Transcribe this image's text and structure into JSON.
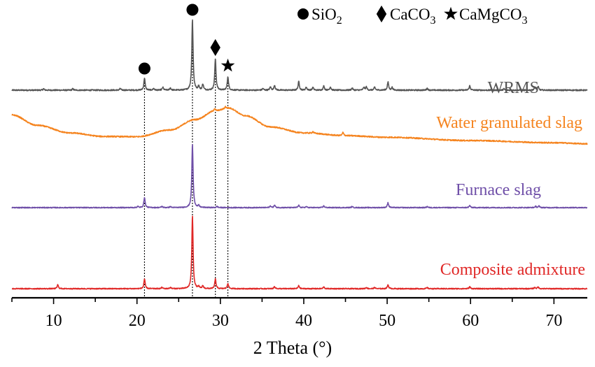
{
  "chart_data": {
    "type": "line",
    "xlabel": "2 Theta (°)",
    "ylabel": "",
    "xlim": [
      5,
      74
    ],
    "x_ticks": [
      10,
      20,
      30,
      40,
      50,
      60,
      70
    ],
    "y_ticks_shown": false,
    "legend": {
      "placement": "top-right",
      "items": [
        {
          "symbol": "circle",
          "label": "SiO",
          "sub": "2"
        },
        {
          "symbol": "diamond",
          "label": "CaCO",
          "sub": "3"
        },
        {
          "symbol": "star",
          "label": "CaMgCO",
          "sub": "3"
        }
      ]
    },
    "reference_lines": [
      {
        "x": 20.9,
        "phase": "SiO2",
        "marker": "circle"
      },
      {
        "x": 26.65,
        "phase": "SiO2",
        "marker": "circle"
      },
      {
        "x": 29.4,
        "phase": "CaCO3",
        "marker": "diamond"
      },
      {
        "x": 30.9,
        "phase": "CaMgCO3",
        "marker": "star"
      }
    ],
    "series": [
      {
        "name": "WRMS",
        "color": "#555555",
        "baseline": 0,
        "background": [
          [
            5,
            0
          ],
          [
            74,
            0
          ]
        ],
        "peaks": [
          [
            8.8,
            0.5
          ],
          [
            12.3,
            0.5
          ],
          [
            18.0,
            0.6
          ],
          [
            20.9,
            4.5
          ],
          [
            22.0,
            0.6
          ],
          [
            23.1,
            1.0
          ],
          [
            24.0,
            0.8
          ],
          [
            26.65,
            26
          ],
          [
            27.4,
            1.5
          ],
          [
            27.9,
            2.2
          ],
          [
            29.4,
            11.5
          ],
          [
            30.9,
            5.0
          ],
          [
            35.1,
            0.6
          ],
          [
            36.0,
            1.2
          ],
          [
            36.5,
            1.8
          ],
          [
            39.4,
            3.2
          ],
          [
            40.3,
            1.1
          ],
          [
            41.1,
            1.0
          ],
          [
            42.4,
            1.5
          ],
          [
            43.2,
            1.2
          ],
          [
            45.8,
            0.8
          ],
          [
            47.2,
            1.0
          ],
          [
            47.5,
            1.2
          ],
          [
            48.5,
            1.1
          ],
          [
            50.1,
            3.0
          ],
          [
            50.6,
            1.0
          ],
          [
            54.8,
            0.7
          ],
          [
            59.9,
            1.6
          ],
          [
            64.0,
            0.5
          ],
          [
            67.7,
            1.0
          ],
          [
            68.1,
            1.3
          ]
        ]
      },
      {
        "name": "Water granulated slag",
        "color": "#f5841f",
        "baseline": 0,
        "background": [
          [
            5,
            4.0
          ],
          [
            8,
            0.2
          ],
          [
            12,
            -2.6
          ],
          [
            16,
            -3.9
          ],
          [
            20,
            -4.0
          ],
          [
            24,
            -1.5
          ],
          [
            27,
            2.3
          ],
          [
            29.5,
            5.6
          ],
          [
            31,
            6.5
          ],
          [
            33,
            3.7
          ],
          [
            36,
            -0.4
          ],
          [
            40,
            -2.6
          ],
          [
            45,
            -3.6
          ],
          [
            50,
            -4.2
          ],
          [
            60,
            -5.4
          ],
          [
            70,
            -6.2
          ],
          [
            74,
            -6.6
          ]
        ],
        "peaks": [
          [
            29.3,
            0.8
          ],
          [
            30.6,
            0.7
          ],
          [
            41.1,
            0.6
          ],
          [
            44.7,
            1.2
          ]
        ]
      },
      {
        "name": "Furnace slag",
        "color": "#6f4fa8",
        "baseline": 0,
        "background": [
          [
            5,
            0
          ],
          [
            74,
            0
          ]
        ],
        "peaks": [
          [
            20.1,
            0.6
          ],
          [
            20.9,
            5.0
          ],
          [
            23.0,
            0.6
          ],
          [
            24.0,
            0.5
          ],
          [
            26.65,
            31
          ],
          [
            27.4,
            0.9
          ],
          [
            29.6,
            0.6
          ],
          [
            36.0,
            0.8
          ],
          [
            36.5,
            1.2
          ],
          [
            39.4,
            1.1
          ],
          [
            40.3,
            0.5
          ],
          [
            42.4,
            0.8
          ],
          [
            45.8,
            0.5
          ],
          [
            50.1,
            2.4
          ],
          [
            54.8,
            0.5
          ],
          [
            59.9,
            1.0
          ],
          [
            67.8,
            0.6
          ],
          [
            68.2,
            0.8
          ]
        ]
      },
      {
        "name": "Composite admixture",
        "color": "#e02726",
        "baseline": 0,
        "background": [
          [
            5,
            0
          ],
          [
            74,
            0
          ]
        ],
        "peaks": [
          [
            10.5,
            1.8
          ],
          [
            20.9,
            4.5
          ],
          [
            23.0,
            0.6
          ],
          [
            24.0,
            0.6
          ],
          [
            26.65,
            34
          ],
          [
            27.4,
            0.9
          ],
          [
            27.9,
            1.3
          ],
          [
            29.4,
            4.5
          ],
          [
            30.9,
            2.5
          ],
          [
            36.5,
            1.0
          ],
          [
            39.4,
            1.4
          ],
          [
            42.4,
            0.8
          ],
          [
            47.5,
            0.6
          ],
          [
            48.5,
            0.6
          ],
          [
            50.1,
            1.8
          ],
          [
            54.8,
            0.5
          ],
          [
            59.9,
            0.9
          ],
          [
            67.7,
            0.6
          ],
          [
            68.1,
            0.8
          ]
        ]
      }
    ]
  }
}
